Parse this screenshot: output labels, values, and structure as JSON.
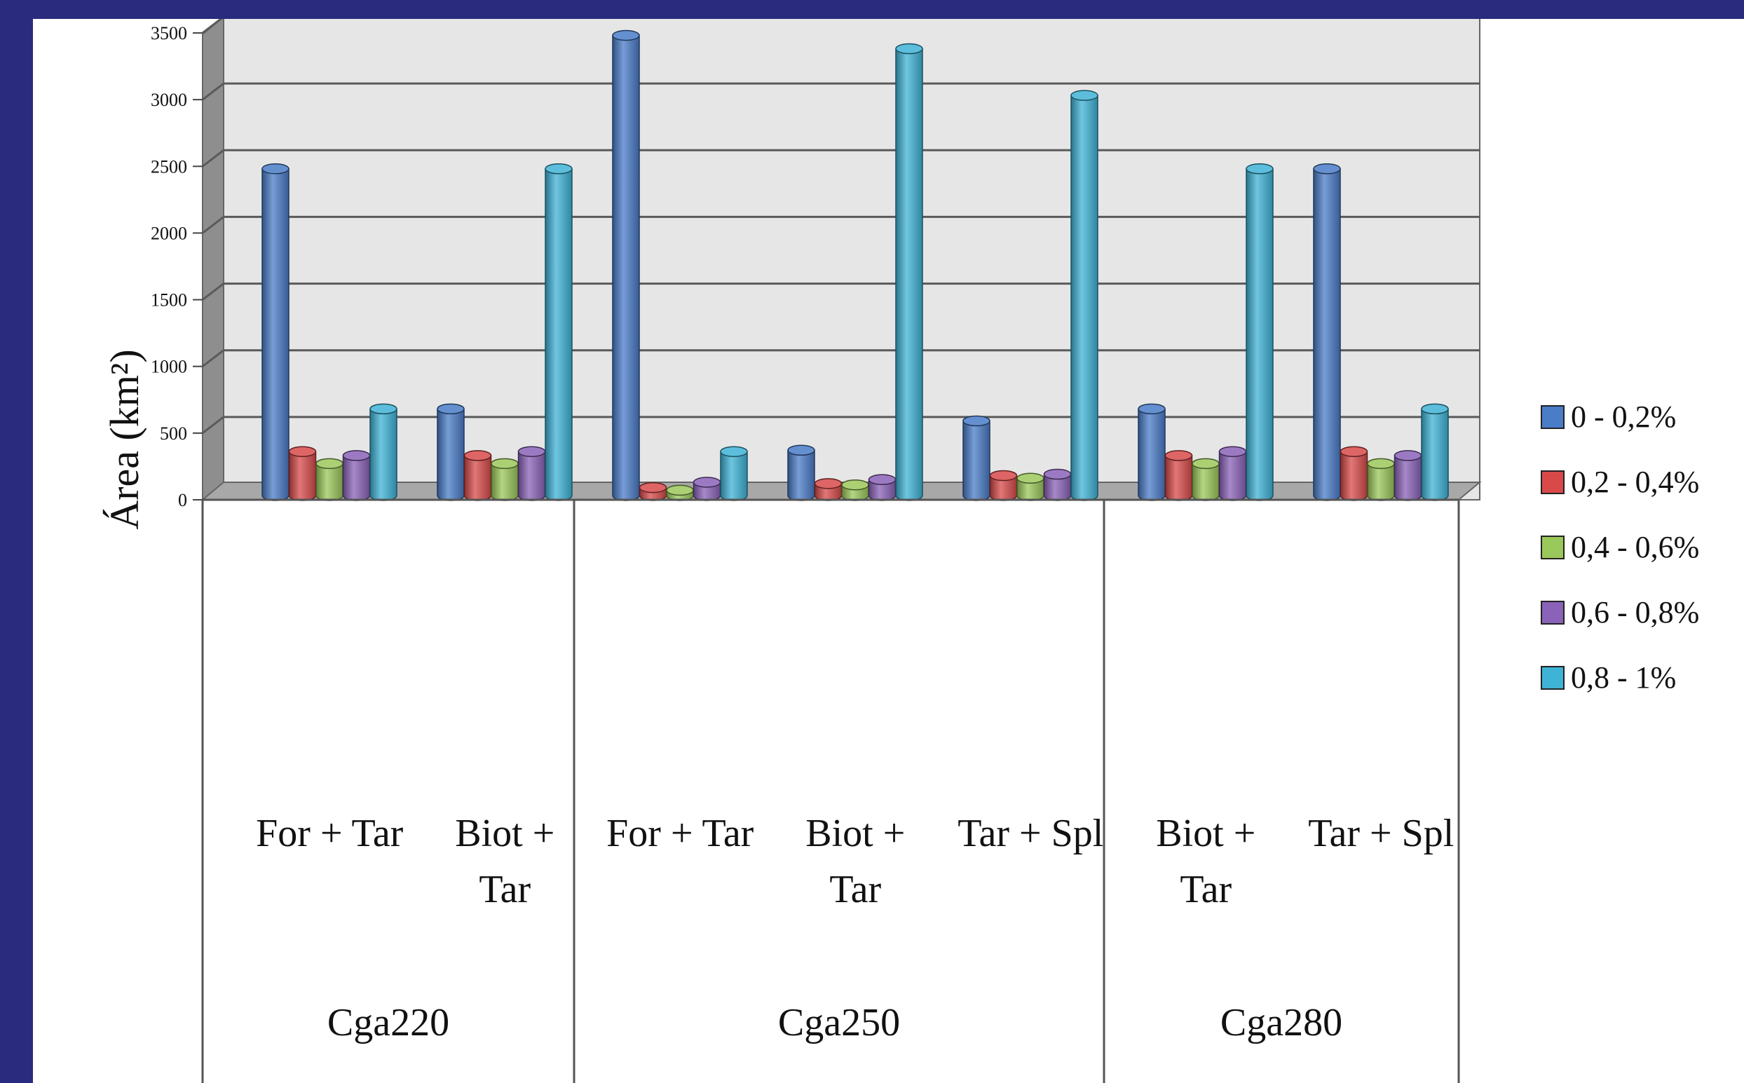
{
  "chart_data": {
    "type": "bar",
    "ylabel": "Área (km²)",
    "ylim": [
      0,
      3500
    ],
    "yticks": [
      0,
      500,
      1000,
      1500,
      2000,
      2500,
      3000,
      3500
    ],
    "grid": true,
    "legend_position": "right",
    "groups": [
      {
        "name": "Cga220",
        "categories": [
          "For + Tar",
          "Biot + Tar"
        ]
      },
      {
        "name": "Cga250",
        "categories": [
          "For + Tar",
          "Biot + Tar",
          "Tar + Spl"
        ]
      },
      {
        "name": "Cga280",
        "categories": [
          "Biot + Tar",
          "Tar + Spl"
        ]
      }
    ],
    "categories": [
      [
        "For + Tar"
      ],
      [
        "Biot +",
        "Tar"
      ],
      [
        "For + Tar"
      ],
      [
        "Biot +",
        "Tar"
      ],
      [
        "Tar + Spl"
      ],
      [
        "Biot +",
        "Tar"
      ],
      [
        "Tar + Spl"
      ]
    ],
    "series": [
      {
        "name": "0 - 0,2%",
        "color": "#4a7cc8",
        "values": [
          2450,
          650,
          3450,
          340,
          560,
          650,
          2450
        ]
      },
      {
        "name": "0,2 - 0,4%",
        "color": "#d84a4a",
        "values": [
          330,
          300,
          60,
          90,
          150,
          300,
          330
        ]
      },
      {
        "name": "0,4 - 0,6%",
        "color": "#9bc85a",
        "values": [
          240,
          240,
          40,
          80,
          130,
          240,
          240
        ]
      },
      {
        "name": "0,6 - 0,8%",
        "color": "#8a62b8",
        "values": [
          300,
          330,
          100,
          120,
          160,
          330,
          300
        ]
      },
      {
        "name": "0,8 - 1%",
        "color": "#3fb3d6",
        "values": [
          650,
          2450,
          330,
          3350,
          3000,
          2450,
          650
        ]
      }
    ]
  }
}
